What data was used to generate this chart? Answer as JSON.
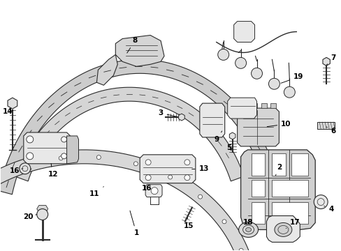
{
  "background_color": "#ffffff",
  "line_color": "#2a2a2a",
  "fill_color": "#e8e8e8",
  "fill_color2": "#d5d5d5",
  "fig_width": 4.89,
  "fig_height": 3.6,
  "dpi": 100
}
